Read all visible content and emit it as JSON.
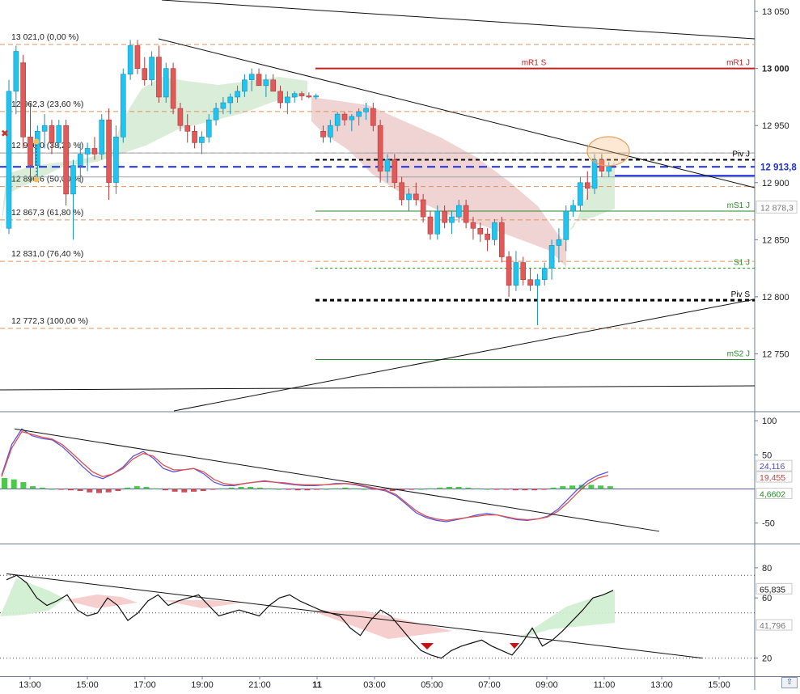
{
  "chart_data": [
    {
      "type": "candlestick",
      "panel": "price",
      "ylim": [
        12700,
        13060
      ],
      "yticks": [
        {
          "v": 13050,
          "label": "13 050"
        },
        {
          "v": 13000,
          "label": "13 000",
          "bold": true
        },
        {
          "v": 12950,
          "label": "12 950"
        },
        {
          "v": 12900,
          "label": "12 900"
        },
        {
          "v": 12850,
          "label": "12 850"
        },
        {
          "v": 12800,
          "label": "12 800"
        },
        {
          "v": 12750,
          "label": "12 750"
        }
      ],
      "fib_levels": [
        {
          "price": 13021.0,
          "label": "13 021,0 (0,00 %)"
        },
        {
          "price": 12962.3,
          "label": "12 962,3 (23,60 %)"
        },
        {
          "price": 12926.0,
          "label": "12 926,0 (38,20 %)"
        },
        {
          "price": 12896.6,
          "label": "12 896,6 (50,00 %)"
        },
        {
          "price": 12867.3,
          "label": "12 867,3 (61,80 %)"
        },
        {
          "price": 12831.0,
          "label": "12 831,0 (76,40 %)"
        },
        {
          "price": 12772.3,
          "label": "12 772,3 (100,00 %)"
        }
      ],
      "pivot_levels": [
        {
          "price": 13000,
          "label": "mR1 J",
          "center_label": "mR1 S",
          "color": "#c42020"
        },
        {
          "price": 12920,
          "label": "Piv J",
          "color": "#000000"
        },
        {
          "price": 12875,
          "label": "mS1 J",
          "color": "#2a8a2a"
        },
        {
          "price": 12825,
          "label": "S1 J",
          "color": "#2a8a2a"
        },
        {
          "price": 12797,
          "label": "Piv S",
          "color": "#000000"
        },
        {
          "price": 12745,
          "label": "mS2 J",
          "color": "#2a8a2a"
        }
      ],
      "price_badges": [
        {
          "price": 12913.8,
          "label": "12 913,8"
        },
        {
          "price": 12878.3,
          "label": "12 878,3"
        }
      ],
      "candles": [
        [
          12860,
          12990,
          12855,
          12980
        ],
        [
          12980,
          13020,
          12960,
          13015
        ],
        [
          13005,
          13012,
          12930,
          12940
        ],
        [
          12940,
          12970,
          12900,
          12915
        ],
        [
          12915,
          12950,
          12905,
          12945
        ],
        [
          12945,
          12960,
          12930,
          12950
        ],
        [
          12950,
          12955,
          12925,
          12935
        ],
        [
          12935,
          12955,
          12930,
          12950
        ],
        [
          12950,
          12955,
          12880,
          12890
        ],
        [
          12890,
          12920,
          12850,
          12915
        ],
        [
          12915,
          12935,
          12900,
          12925
        ],
        [
          12925,
          12935,
          12910,
          12930
        ],
        [
          12930,
          12940,
          12920,
          12925
        ],
        [
          12925,
          12960,
          12920,
          12955
        ],
        [
          12955,
          12965,
          12885,
          12900
        ],
        [
          12900,
          12950,
          12890,
          12940
        ],
        [
          12940,
          13000,
          12935,
          12995
        ],
        [
          12995,
          13025,
          12990,
          13020
        ],
        [
          13020,
          13025,
          12995,
          13000
        ],
        [
          13000,
          13010,
          12985,
          12990
        ],
        [
          12990,
          13015,
          12985,
          13010
        ],
        [
          13010,
          13020,
          12970,
          12975
        ],
        [
          12975,
          13005,
          12970,
          13000
        ],
        [
          13000,
          13005,
          12960,
          12965
        ],
        [
          12965,
          12970,
          12945,
          12950
        ],
        [
          12950,
          12960,
          12935,
          12945
        ],
        [
          12945,
          12950,
          12930,
          12935
        ],
        [
          12935,
          12945,
          12925,
          12940
        ],
        [
          12940,
          12960,
          12935,
          12955
        ],
        [
          12955,
          12970,
          12950,
          12965
        ],
        [
          12965,
          12975,
          12960,
          12970
        ],
        [
          12970,
          12978,
          12960,
          12975
        ],
        [
          12975,
          12985,
          12970,
          12980
        ],
        [
          12980,
          12995,
          12975,
          12990
        ],
        [
          12990,
          13000,
          12980,
          12995
        ],
        [
          12995,
          13000,
          12985,
          12985
        ],
        [
          12985,
          12995,
          12975,
          12990
        ],
        [
          12990,
          12995,
          12980,
          12980
        ],
        [
          12980,
          12985,
          12965,
          12970
        ],
        [
          12970,
          12980,
          12960,
          12975
        ],
        [
          12975,
          12980,
          12970,
          12978
        ],
        [
          12978,
          12980,
          12972,
          12976
        ],
        [
          12976,
          12979,
          12974,
          12975
        ],
        [
          12975,
          12978,
          12973,
          12976
        ],
        [
          12945,
          12950,
          12935,
          12940
        ],
        [
          12940,
          12955,
          12935,
          12950
        ],
        [
          12950,
          12962,
          12945,
          12960
        ],
        [
          12960,
          12962,
          12950,
          12955
        ],
        [
          12955,
          12960,
          12945,
          12958
        ],
        [
          12958,
          12965,
          12950,
          12962
        ],
        [
          12962,
          12970,
          12955,
          12965
        ],
        [
          12965,
          12970,
          12945,
          12950
        ],
        [
          12950,
          12955,
          12900,
          12910
        ],
        [
          12910,
          12925,
          12900,
          12920
        ],
        [
          12920,
          12925,
          12895,
          12900
        ],
        [
          12900,
          12905,
          12880,
          12885
        ],
        [
          12885,
          12895,
          12875,
          12890
        ],
        [
          12890,
          12900,
          12880,
          12885
        ],
        [
          12885,
          12890,
          12865,
          12870
        ],
        [
          12870,
          12875,
          12850,
          12855
        ],
        [
          12855,
          12880,
          12850,
          12875
        ],
        [
          12875,
          12880,
          12860,
          12865
        ],
        [
          12865,
          12875,
          12855,
          12870
        ],
        [
          12870,
          12885,
          12865,
          12880
        ],
        [
          12880,
          12885,
          12860,
          12865
        ],
        [
          12865,
          12870,
          12850,
          12860
        ],
        [
          12860,
          12865,
          12848,
          12855
        ],
        [
          12855,
          12860,
          12840,
          12850
        ],
        [
          12850,
          12868,
          12845,
          12865
        ],
        [
          12865,
          12870,
          12830,
          12835
        ],
        [
          12835,
          12840,
          12800,
          12810
        ],
        [
          12810,
          12840,
          12805,
          12830
        ],
        [
          12830,
          12835,
          12810,
          12815
        ],
        [
          12815,
          12825,
          12805,
          12810
        ],
        [
          12810,
          12820,
          12775,
          12815
        ],
        [
          12815,
          12830,
          12810,
          12825
        ],
        [
          12825,
          12850,
          12815,
          12845
        ],
        [
          12845,
          12860,
          12830,
          12850
        ],
        [
          12850,
          12880,
          12840,
          12875
        ],
        [
          12875,
          12885,
          12870,
          12880
        ],
        [
          12880,
          12905,
          12875,
          12900
        ],
        [
          12900,
          12910,
          12885,
          12895
        ],
        [
          12895,
          12925,
          12890,
          12920
        ],
        [
          12920,
          12925,
          12905,
          12910
        ],
        [
          12910,
          12918,
          12905,
          12914
        ]
      ]
    },
    {
      "type": "line",
      "panel": "oscillator",
      "ylim": [
        -80,
        112
      ],
      "yticks": [
        {
          "v": 100,
          "label": "100"
        },
        {
          "v": 50,
          "label": "50"
        },
        {
          "v": -50,
          "label": "-50"
        }
      ],
      "badges": [
        {
          "v": 24.116,
          "label": "24,116",
          "color": "#4a4ac0"
        },
        {
          "v": 19.455,
          "label": "19,455",
          "color": "#c04040"
        },
        {
          "v": 4.6602,
          "label": "4,6602",
          "color": "#2a8a2a"
        }
      ],
      "series": [
        {
          "color": "#5b57d9",
          "values": [
            20,
            65,
            88,
            78,
            74,
            72,
            62,
            48,
            33,
            20,
            15,
            22,
            32,
            48,
            55,
            45,
            30,
            25,
            28,
            30,
            22,
            10,
            5,
            5,
            8,
            10,
            12,
            10,
            8,
            6,
            5,
            5,
            6,
            8,
            8,
            6,
            3,
            0,
            -3,
            -10,
            -22,
            -35,
            -42,
            -46,
            -48,
            -45,
            -42,
            -38,
            -36,
            -38,
            -42,
            -45,
            -46,
            -44,
            -40,
            -30,
            -15,
            0,
            12,
            20,
            25
          ]
        },
        {
          "color": "#e05050",
          "values": [
            18,
            60,
            84,
            80,
            76,
            73,
            65,
            52,
            38,
            25,
            18,
            22,
            30,
            44,
            52,
            48,
            35,
            28,
            28,
            30,
            25,
            14,
            8,
            6,
            8,
            10,
            11,
            10,
            9,
            7,
            6,
            6,
            6,
            7,
            8,
            7,
            4,
            1,
            -2,
            -8,
            -20,
            -32,
            -40,
            -44,
            -46,
            -44,
            -42,
            -40,
            -38,
            -38,
            -41,
            -44,
            -45,
            -44,
            -41,
            -33,
            -20,
            -5,
            8,
            16,
            20
          ]
        }
      ],
      "histogram": [
        16,
        14,
        10,
        4,
        2,
        0,
        -1,
        -2,
        -3,
        -5,
        -6,
        -5,
        -3,
        2,
        4,
        3,
        1,
        -2,
        -4,
        -5,
        -4,
        -3,
        -1,
        1,
        2,
        3,
        3,
        2,
        1,
        0,
        -1,
        -2,
        -2,
        -1,
        0,
        1,
        2,
        1,
        0,
        -1,
        -2,
        -3,
        -2,
        -1,
        0,
        1,
        2,
        3,
        3,
        2,
        1,
        0,
        -1,
        -1,
        -2,
        -2,
        -2,
        -1,
        2,
        4,
        5,
        6,
        6,
        5,
        4
      ]
    },
    {
      "type": "line",
      "panel": "rsi",
      "ylim": [
        8,
        95
      ],
      "yticks": [
        {
          "v": 80,
          "label": "80"
        },
        {
          "v": 60,
          "label": "60"
        },
        {
          "v": 20,
          "label": "20"
        }
      ],
      "badges": [
        {
          "v": 65.835,
          "label": "65,835"
        },
        {
          "v": 41.796,
          "label": "41,796"
        }
      ],
      "values": [
        72,
        75,
        70,
        60,
        55,
        58,
        62,
        52,
        48,
        50,
        60,
        55,
        45,
        50,
        58,
        62,
        55,
        58,
        60,
        62,
        55,
        48,
        50,
        52,
        50,
        48,
        55,
        60,
        62,
        58,
        55,
        52,
        50,
        48,
        40,
        35,
        45,
        52,
        48,
        40,
        32,
        25,
        22,
        20,
        25,
        28,
        30,
        32,
        28,
        25,
        22,
        30,
        40,
        28,
        32,
        38,
        45,
        52,
        60,
        62,
        65
      ],
      "xticks": [
        {
          "label": "13:00"
        },
        {
          "label": "15:00"
        },
        {
          "label": "17:00"
        },
        {
          "label": "19:00"
        },
        {
          "label": "21:00"
        },
        {
          "label": "11",
          "bold": true
        },
        {
          "label": "03:00"
        },
        {
          "label": "05:00"
        },
        {
          "label": "07:00"
        },
        {
          "label": "09:00"
        },
        {
          "label": "11:00"
        },
        {
          "label": "13:00"
        },
        {
          "label": "15:00"
        }
      ]
    }
  ],
  "icons": {
    "close_marker": "close-x-icon",
    "scroll_button": "double-up-chevron-icon"
  }
}
